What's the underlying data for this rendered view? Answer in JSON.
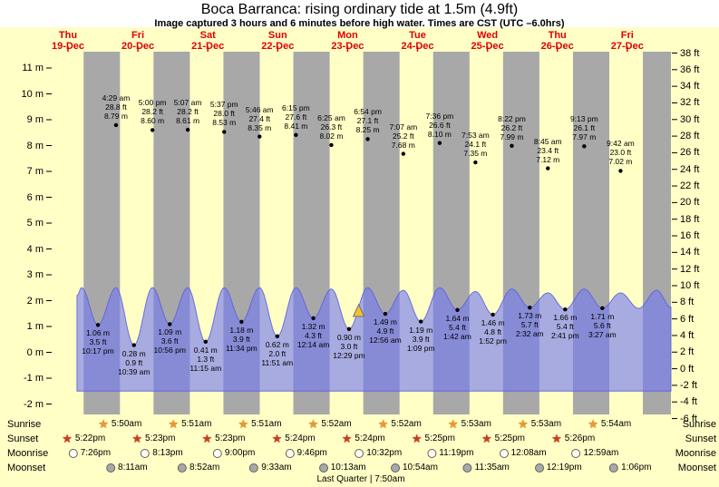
{
  "header": {
    "title": "Boca Barranca: rising  ordinary tide at 1.5m (4.9ft)",
    "subtitle": "Image captured 3 hours and 6 minutes before high water. Times are CST (UTC –6.0hrs)"
  },
  "days": [
    {
      "name": "Thu",
      "date": "19-Dec"
    },
    {
      "name": "Fri",
      "date": "20-Dec"
    },
    {
      "name": "Sat",
      "date": "21-Dec"
    },
    {
      "name": "Sun",
      "date": "22-Dec"
    },
    {
      "name": "Mon",
      "date": "23-Dec"
    },
    {
      "name": "Tue",
      "date": "24-Dec"
    },
    {
      "name": "Wed",
      "date": "25-Dec"
    },
    {
      "name": "Thu",
      "date": "26-Dec"
    },
    {
      "name": "Fri",
      "date": "27-Dec"
    }
  ],
  "chart_data": {
    "type": "area",
    "title": "Boca Barranca tide heights",
    "y_axis_m": {
      "min": -2,
      "max": 11,
      "tick_step": 1,
      "suffix": " m"
    },
    "y_axis_ft": {
      "min": -6,
      "max": 38,
      "tick_step": 2,
      "suffix": " ft"
    },
    "high_tides": [
      {
        "d": 1,
        "t": "4:29 am",
        "ft": 28.8,
        "m": 8.79
      },
      {
        "d": 1,
        "t": "5:00 pm",
        "ft": 28.2,
        "m": 8.6
      },
      {
        "d": 2,
        "t": "5:07 am",
        "ft": 28.2,
        "m": 8.61
      },
      {
        "d": 2,
        "t": "5:37 pm",
        "ft": 28.0,
        "m": 8.53
      },
      {
        "d": 3,
        "t": "5:46 am",
        "ft": 27.4,
        "m": 8.35
      },
      {
        "d": 3,
        "t": "6:15 pm",
        "ft": 27.6,
        "m": 8.41
      },
      {
        "d": 4,
        "t": "6:25 am",
        "ft": 26.3,
        "m": 8.02
      },
      {
        "d": 4,
        "t": "6:54 pm",
        "ft": 27.1,
        "m": 8.25
      },
      {
        "d": 5,
        "t": "7:07 am",
        "ft": 25.2,
        "m": 7.68
      },
      {
        "d": 5,
        "t": "7:36 pm",
        "ft": 26.6,
        "m": 8.1
      },
      {
        "d": 6,
        "t": "7:53 am",
        "ft": 24.1,
        "m": 7.35
      },
      {
        "d": 6,
        "t": "8:22 pm",
        "ft": 26.2,
        "m": 7.99
      },
      {
        "d": 7,
        "t": "8:45 am",
        "ft": 23.4,
        "m": 7.12
      },
      {
        "d": 7,
        "t": "9:13 pm",
        "ft": 26.1,
        "m": 7.97
      },
      {
        "d": 8,
        "t": "9:42 am",
        "ft": 23.0,
        "m": 7.02
      }
    ],
    "low_tides": [
      {
        "d": 0,
        "t": "10:17 pm",
        "m": 1.06,
        "ft": 3.5
      },
      {
        "d": 1,
        "t": "10:39 am",
        "m": 0.28,
        "ft": 0.9
      },
      {
        "d": 1,
        "t": "10:56 pm",
        "m": 1.09,
        "ft": 3.6
      },
      {
        "d": 2,
        "t": "11:15 am",
        "m": 0.41,
        "ft": 1.3
      },
      {
        "d": 2,
        "t": "11:34 pm",
        "m": 1.18,
        "ft": 3.9
      },
      {
        "d": 3,
        "t": "11:51 am",
        "m": 0.62,
        "ft": 2.0
      },
      {
        "d": 4,
        "t": "12:14 am",
        "m": 1.32,
        "ft": 4.3
      },
      {
        "d": 4,
        "t": "12:29 pm",
        "m": 0.9,
        "ft": 3.0
      },
      {
        "d": 5,
        "t": "12:56 am",
        "m": 1.49,
        "ft": 4.9
      },
      {
        "d": 5,
        "t": "1:09 pm",
        "m": 1.19,
        "ft": 3.9
      },
      {
        "d": 6,
        "t": "1:42 am",
        "m": 1.64,
        "ft": 5.4
      },
      {
        "d": 6,
        "t": "1:52 pm",
        "m": 1.46,
        "ft": 4.8
      },
      {
        "d": 7,
        "t": "2:32 am",
        "m": 1.73,
        "ft": 5.7
      },
      {
        "d": 7,
        "t": "2:41 pm",
        "m": 1.66,
        "ft": 5.4
      },
      {
        "d": 8,
        "t": "3:27 am",
        "m": 1.71,
        "ft": 5.6
      }
    ],
    "current_marker": {
      "d": 4,
      "t": "3:48 pm",
      "m": 1.6
    },
    "wave_base_m": -1.5,
    "wave_profile": [
      {
        "d": 0,
        "t": "3:05 pm",
        "m": 2.2
      },
      {
        "d": 0,
        "t": "4:40 pm",
        "m": 2.5
      },
      {
        "d": 0,
        "t": "10:17 pm",
        "m": 1.06
      },
      {
        "d": 1,
        "t": "4:29 am",
        "m": 2.5
      },
      {
        "d": 1,
        "t": "10:39 am",
        "m": 0.28
      },
      {
        "d": 1,
        "t": "5:00 pm",
        "m": 2.5
      },
      {
        "d": 1,
        "t": "10:56 pm",
        "m": 1.09
      },
      {
        "d": 2,
        "t": "5:07 am",
        "m": 2.5
      },
      {
        "d": 2,
        "t": "11:15 am",
        "m": 0.41
      },
      {
        "d": 2,
        "t": "5:37 pm",
        "m": 2.5
      },
      {
        "d": 2,
        "t": "11:34 pm",
        "m": 1.18
      },
      {
        "d": 3,
        "t": "5:46 am",
        "m": 2.5
      },
      {
        "d": 3,
        "t": "11:51 am",
        "m": 0.62
      },
      {
        "d": 3,
        "t": "6:15 pm",
        "m": 2.5
      },
      {
        "d": 4,
        "t": "12:14 am",
        "m": 1.32
      },
      {
        "d": 4,
        "t": "6:25 am",
        "m": 2.45
      },
      {
        "d": 4,
        "t": "12:29 pm",
        "m": 0.9
      },
      {
        "d": 4,
        "t": "6:54 pm",
        "m": 2.5
      },
      {
        "d": 5,
        "t": "12:56 am",
        "m": 1.49
      },
      {
        "d": 5,
        "t": "7:07 am",
        "m": 2.4
      },
      {
        "d": 5,
        "t": "1:09 pm",
        "m": 1.19
      },
      {
        "d": 5,
        "t": "7:36 pm",
        "m": 2.5
      },
      {
        "d": 6,
        "t": "1:42 am",
        "m": 1.64
      },
      {
        "d": 6,
        "t": "7:53 am",
        "m": 2.35
      },
      {
        "d": 6,
        "t": "1:52 pm",
        "m": 1.46
      },
      {
        "d": 6,
        "t": "8:22 pm",
        "m": 2.45
      },
      {
        "d": 7,
        "t": "2:32 am",
        "m": 1.73
      },
      {
        "d": 7,
        "t": "8:45 am",
        "m": 2.3
      },
      {
        "d": 7,
        "t": "2:41 pm",
        "m": 1.66
      },
      {
        "d": 7,
        "t": "9:13 pm",
        "m": 2.45
      },
      {
        "d": 8,
        "t": "3:27 am",
        "m": 1.71
      },
      {
        "d": 8,
        "t": "9:42 am",
        "m": 2.3
      },
      {
        "d": 8,
        "t": "3:55 pm",
        "m": 1.7
      },
      {
        "d": 8,
        "t": "10:05 pm",
        "m": 2.4
      },
      {
        "d": 9,
        "t": "3:00 am",
        "m": 1.75
      }
    ]
  },
  "astro": {
    "night_sunset": "5:22 pm",
    "night_sunrise": "5:50 am",
    "rows": [
      {
        "label": "Sunrise",
        "icon": "sunrise-star",
        "entries": [
          {
            "d": 1,
            "time": "5:50am"
          },
          {
            "d": 2,
            "time": "5:51am"
          },
          {
            "d": 3,
            "time": "5:51am"
          },
          {
            "d": 4,
            "time": "5:52am"
          },
          {
            "d": 5,
            "time": "5:52am"
          },
          {
            "d": 6,
            "time": "5:53am"
          },
          {
            "d": 7,
            "time": "5:53am"
          },
          {
            "d": 8,
            "time": "5:54am"
          }
        ]
      },
      {
        "label": "Sunset",
        "icon": "sunset-star",
        "entries": [
          {
            "d": 0,
            "time": "5:22pm"
          },
          {
            "d": 1,
            "time": "5:23pm"
          },
          {
            "d": 2,
            "time": "5:23pm"
          },
          {
            "d": 3,
            "time": "5:24pm"
          },
          {
            "d": 4,
            "time": "5:24pm"
          },
          {
            "d": 5,
            "time": "5:25pm"
          },
          {
            "d": 6,
            "time": "5:25pm"
          },
          {
            "d": 7,
            "time": "5:26pm"
          }
        ]
      },
      {
        "label": "Moonrise",
        "icon": "moonrise-circle",
        "entries": [
          {
            "d": 0,
            "time": "7:26pm"
          },
          {
            "d": 1,
            "time": "8:13pm"
          },
          {
            "d": 2,
            "time": "9:00pm"
          },
          {
            "d": 3,
            "time": "9:46pm"
          },
          {
            "d": 4,
            "time": "10:32pm"
          },
          {
            "d": 5,
            "time": "11:19pm"
          },
          {
            "d": 7,
            "time": "12:08am"
          },
          {
            "d": 8,
            "time": "12:59am"
          }
        ]
      },
      {
        "label": "Moonset",
        "icon": "moonset-circle",
        "entries": [
          {
            "d": 1,
            "time": "8:11am"
          },
          {
            "d": 2,
            "time": "8:52am"
          },
          {
            "d": 3,
            "time": "9:33am"
          },
          {
            "d": 4,
            "time": "10:13am"
          },
          {
            "d": 5,
            "time": "10:54am"
          },
          {
            "d": 6,
            "time": "11:35am"
          },
          {
            "d": 7,
            "time": "12:19pm"
          },
          {
            "d": 8,
            "time": "1:06pm"
          }
        ]
      }
    ],
    "footer": "Last Quarter | 7:50am"
  },
  "colors": {
    "page_background": "#ffffc6",
    "night_band": "#a8a8a8",
    "wave_fill": "rgba(115,120,240,0.62)",
    "wave_stroke": "rgba(90,95,220,0.85)",
    "day_label": "#e00000",
    "marker_fill": "#f2c12e",
    "dot": "#000000"
  }
}
